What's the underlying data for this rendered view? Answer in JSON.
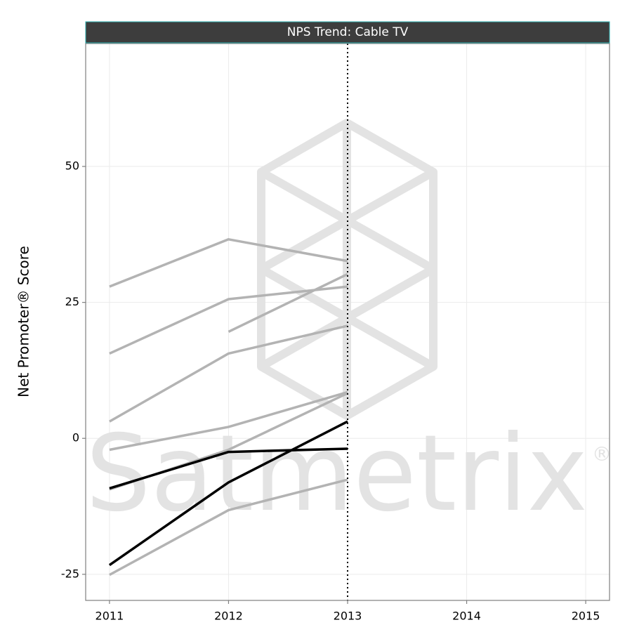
{
  "chart_data": {
    "type": "line",
    "title": "NPS Trend: Cable TV",
    "y_label": "Net Promoter® Score",
    "watermark": "Satmetrix",
    "watermark_mark": "®",
    "x": [
      2011,
      2012,
      2013
    ],
    "xlim": [
      2010.8,
      2015.2
    ],
    "xticks": [
      2011,
      2012,
      2013,
      2014,
      2015
    ],
    "ylim": [
      -29.8,
      72.6
    ],
    "yticks": [
      -25,
      0,
      25,
      50
    ],
    "grid": true,
    "vline": 2013,
    "series": [
      {
        "color": "#b3b3b3",
        "values": [
          27.9,
          36.6,
          32.6
        ]
      },
      {
        "color": "#b3b3b3",
        "values": [
          15.6,
          25.6,
          27.9
        ]
      },
      {
        "color": "#b3b3b3",
        "values": [
          null,
          19.6,
          30.2
        ]
      },
      {
        "color": "#b3b3b3",
        "values": [
          3.1,
          15.6,
          20.7
        ]
      },
      {
        "color": "#b3b3b3",
        "values": [
          -2.1,
          2.1,
          8.5
        ]
      },
      {
        "color": "#b3b3b3",
        "values": [
          -9.4,
          -2.1,
          8.3
        ]
      },
      {
        "color": "#b3b3b3",
        "values": [
          -25.1,
          -13.2,
          -7.6
        ]
      },
      {
        "color": "#000000",
        "values": [
          -9.2,
          -2.5,
          -1.9
        ]
      },
      {
        "color": "#000000",
        "values": [
          -23.3,
          -8.1,
          3.1
        ]
      }
    ]
  }
}
